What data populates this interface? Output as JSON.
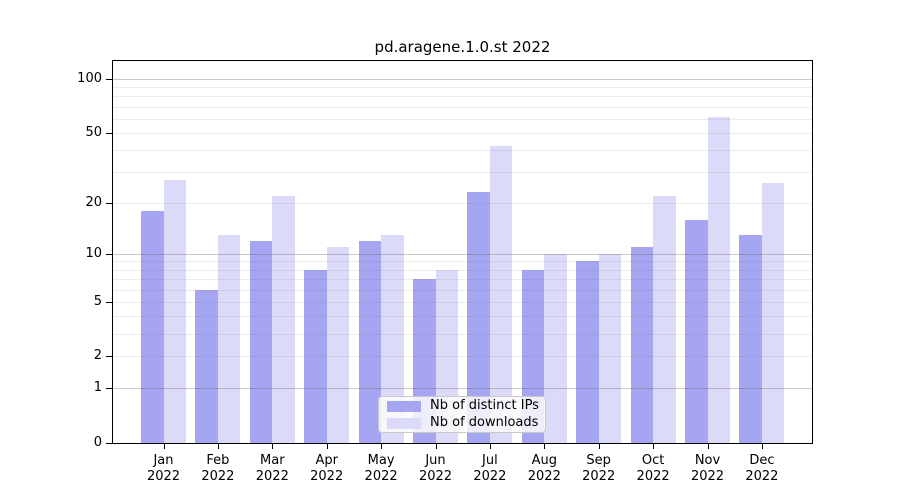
{
  "title": "pd.aragene.1.0.st 2022",
  "legend": {
    "items": [
      {
        "label": "Nb of distinct IPs"
      },
      {
        "label": "Nb of downloads"
      }
    ]
  },
  "chart_data": {
    "type": "bar",
    "title": "pd.aragene.1.0.st 2022",
    "categories": [
      "Jan 2022",
      "Feb 2022",
      "Mar 2022",
      "Apr 2022",
      "May 2022",
      "Jun 2022",
      "Jul 2022",
      "Aug 2022",
      "Sep 2022",
      "Oct 2022",
      "Nov 2022",
      "Dec 2022"
    ],
    "x_tick_month": [
      "Jan",
      "Feb",
      "Mar",
      "Apr",
      "May",
      "Jun",
      "Jul",
      "Aug",
      "Sep",
      "Oct",
      "Nov",
      "Dec"
    ],
    "x_tick_year": "2022",
    "series": [
      {
        "name": "Nb of distinct IPs",
        "color": "#a5a5f2",
        "values": [
          18,
          6,
          12,
          8,
          12,
          7,
          23,
          8,
          9,
          11,
          16,
          13
        ]
      },
      {
        "name": "Nb of downloads",
        "color": "#dbdbf9",
        "values": [
          27,
          13,
          22,
          11,
          13,
          8,
          42,
          10,
          10,
          22,
          61,
          26
        ]
      }
    ],
    "yscale": "log1p",
    "ylim": [
      0,
      126
    ],
    "y_ticks": [
      0,
      1,
      2,
      5,
      10,
      20,
      50,
      100
    ],
    "grid": {
      "major": [
        1,
        10,
        100
      ],
      "minor": [
        2,
        3,
        4,
        5,
        6,
        7,
        8,
        9,
        20,
        30,
        40,
        50,
        60,
        70,
        80,
        90
      ]
    },
    "legend_position": "inside bottom center-left"
  }
}
